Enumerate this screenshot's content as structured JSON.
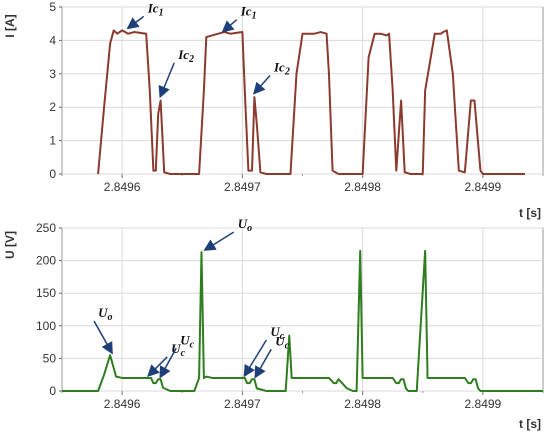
{
  "chart_data": [
    {
      "type": "line",
      "ylabel": "I [A]",
      "xlabel": "t [s]",
      "ylim": [
        0,
        5
      ],
      "xlim": [
        2.84955,
        2.84995
      ],
      "yticks": [
        "0",
        "1",
        "2",
        "3",
        "4",
        "5"
      ],
      "xticks": [
        "2.8496",
        "2.8497",
        "2.8498",
        "2.8499"
      ],
      "grid": true,
      "color": "#8b3a2e",
      "series": [
        {
          "x": [
            2.84958,
            2.849585,
            2.84959,
            2.849593,
            2.849596,
            2.8496,
            2.849605,
            2.84961,
            2.84962,
            2.849623,
            2.849626,
            2.849628,
            2.84963,
            2.849632,
            2.849635,
            2.84964,
            2.849664,
            2.849668,
            2.84967,
            2.84968,
            2.849685,
            2.84969,
            2.8497,
            2.849702,
            2.849705,
            2.849708,
            2.84971,
            2.849712,
            2.849715,
            2.84972,
            2.84974,
            2.849745,
            2.84975,
            2.84976,
            2.849765,
            2.84977,
            2.849772,
            2.849775,
            2.84978,
            2.849792,
            2.849796,
            2.8498,
            2.849805,
            2.84981,
            2.849815,
            2.84982,
            2.849822,
            2.849825,
            2.849828,
            2.849832,
            2.849835,
            2.84984,
            2.84985,
            2.849852,
            2.84986,
            2.849865,
            2.849867,
            2.84987,
            2.849875,
            2.84988,
            2.849885,
            2.84989,
            2.849893,
            2.849898,
            2.8499,
            2.849902,
            2.849905,
            2.849908,
            2.84991,
            2.849915,
            2.849935
          ],
          "y": [
            0,
            2.0,
            3.9,
            4.3,
            4.2,
            4.3,
            4.2,
            4.25,
            4.2,
            2.5,
            0.1,
            0.1,
            1.8,
            2.2,
            0.05,
            0,
            0,
            2.5,
            4.1,
            4.2,
            4.25,
            4.2,
            4.25,
            2.5,
            0.1,
            0.1,
            2.3,
            1.5,
            0.05,
            0,
            0,
            3.0,
            4.2,
            4.2,
            4.25,
            4.2,
            3.0,
            0.1,
            0,
            0,
            0,
            0,
            3.5,
            4.2,
            4.2,
            4.15,
            4.2,
            2.5,
            0.1,
            2.2,
            0.05,
            0,
            0,
            2.5,
            4.2,
            4.2,
            4.25,
            4.3,
            3.0,
            0.1,
            0.05,
            2.2,
            2.2,
            0.1,
            0,
            0,
            0,
            0,
            0,
            0,
            0
          ]
        }
      ],
      "annotations": [
        {
          "label": "Ic",
          "sub": "1",
          "x": 2.849603,
          "y": 4.3
        },
        {
          "label": "Ic",
          "sub": "2",
          "x": 2.84963,
          "y": 2.25
        },
        {
          "label": "Ic",
          "sub": "1",
          "x": 2.849682,
          "y": 4.2
        },
        {
          "label": "Ic",
          "sub": "2",
          "x": 2.849708,
          "y": 2.35
        }
      ]
    },
    {
      "type": "line",
      "ylabel": "U [V]",
      "xlabel": "t [s]",
      "ylim": [
        0,
        250
      ],
      "xlim": [
        2.84955,
        2.84995
      ],
      "yticks": [
        "0",
        "50",
        "100",
        "150",
        "200",
        "250"
      ],
      "xticks": [
        "2.8496",
        "2.8497",
        "2.8498",
        "2.8499"
      ],
      "grid": true,
      "color": "#2e7d1e",
      "series": [
        {
          "x": [
            2.84955,
            2.84958,
            2.849585,
            2.84959,
            2.849595,
            2.8496,
            2.849605,
            2.84962,
            2.849624,
            2.849626,
            2.849628,
            2.84963,
            2.849632,
            2.849634,
            2.84964,
            2.84966,
            2.849664,
            2.849666,
            2.849668,
            2.84967,
            2.849675,
            2.849695,
            2.8497,
            2.849702,
            2.849704,
            2.849706,
            2.849708,
            2.84971,
            2.849712,
            2.84972,
            2.849736,
            2.849739,
            2.849741,
            2.849745,
            2.849772,
            2.849776,
            2.849778,
            2.84978,
            2.849787,
            2.849792,
            2.849795,
            2.849798,
            2.8498,
            2.849805,
            2.849825,
            2.849828,
            2.84983,
            2.849832,
            2.849834,
            2.849836,
            2.849838,
            2.84984,
            2.849845,
            2.849852,
            2.849854,
            2.849856,
            2.849858,
            2.849865,
            2.849885,
            2.849888,
            2.84989,
            2.849892,
            2.849894,
            2.849896,
            2.849898,
            2.8499,
            2.84992,
            2.84995
          ],
          "y": [
            0,
            0,
            25,
            55,
            22,
            20,
            20,
            20,
            20,
            12,
            12,
            18,
            18,
            5,
            0,
            0,
            20,
            213,
            20,
            22,
            20,
            20,
            20,
            20,
            12,
            12,
            18,
            18,
            4,
            0,
            0,
            85,
            20,
            20,
            20,
            12,
            12,
            18,
            4,
            0,
            0,
            215,
            20,
            20,
            20,
            12,
            12,
            18,
            18,
            4,
            0,
            0,
            0,
            215,
            20,
            20,
            20,
            20,
            20,
            12,
            12,
            18,
            18,
            4,
            0,
            0,
            0,
            0
          ]
        }
      ],
      "annotations": [
        {
          "label": "U",
          "sub": "o",
          "x": 2.84959,
          "y": 55
        },
        {
          "label": "U",
          "sub": "c",
          "x": 2.84962,
          "y": 20
        },
        {
          "label": "U",
          "sub": "c",
          "x": 2.84963,
          "y": 18
        },
        {
          "label": "U",
          "sub": "o",
          "x": 2.849667,
          "y": 213
        },
        {
          "label": "U",
          "sub": "c",
          "x": 2.8497,
          "y": 20
        },
        {
          "label": "U",
          "sub": "c",
          "x": 2.849709,
          "y": 18
        }
      ]
    }
  ]
}
